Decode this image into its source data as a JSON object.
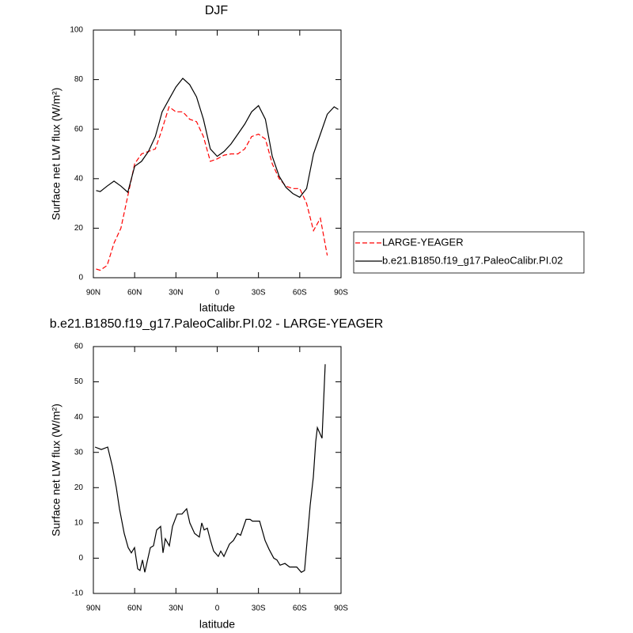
{
  "chart_data": [
    {
      "type": "line",
      "title": "DJF",
      "xlabel": "latitude",
      "ylabel": "Surface net LW flux (W/m²)",
      "x": [
        88,
        85,
        80,
        75,
        70,
        65,
        60,
        55,
        50,
        45,
        40,
        35,
        30,
        25,
        20,
        15,
        10,
        5,
        0,
        -5,
        -10,
        -15,
        -20,
        -25,
        -30,
        -35,
        -40,
        -45,
        -50,
        -55,
        -60,
        -65,
        -70,
        -75,
        -80,
        -85,
        -88
      ],
      "series": [
        {
          "name": "LARGE-YEAGER",
          "color": "#ff0000",
          "style": "dashed",
          "values": [
            3.5,
            3,
            5,
            14,
            20,
            33,
            46,
            50,
            51,
            52,
            60,
            69,
            67,
            67,
            64,
            63,
            57,
            47,
            48,
            49.5,
            50,
            50,
            52,
            57,
            58,
            56,
            46,
            40,
            37,
            36,
            36,
            30,
            19,
            24,
            9,
            null,
            null
          ]
        },
        {
          "name": "b.e21.B1850.f19_g17.PaleoCalibr.PI.02",
          "color": "#000000",
          "style": "solid",
          "values": [
            35.2,
            34.8,
            37,
            39,
            37,
            34.5,
            45,
            47,
            51,
            57,
            67,
            72,
            77,
            80.5,
            78,
            73,
            64,
            52,
            49,
            51,
            54,
            58,
            62,
            67,
            69.5,
            64,
            49,
            41,
            36.5,
            34,
            32.5,
            36,
            50,
            58,
            66,
            69,
            68
          ]
        }
      ],
      "xlim": [
        90,
        -90
      ],
      "xticks": [
        {
          "value": 90,
          "label": "90N"
        },
        {
          "value": 60,
          "label": "60N"
        },
        {
          "value": 30,
          "label": "30N"
        },
        0,
        {
          "value": -30,
          "label": "30S"
        },
        {
          "value": -60,
          "label": "60S"
        },
        {
          "value": -90,
          "label": "90S"
        }
      ],
      "ylim": [
        0,
        100
      ],
      "yticks": [
        0,
        20,
        40,
        60,
        80,
        100
      ],
      "legend": "right"
    },
    {
      "type": "line",
      "title": "b.e21.B1850.f19_g17.PaleoCalibr.PI.02 - LARGE-YEAGER",
      "xlabel": "latitude",
      "ylabel": "Surface net LW flux (W/m²)",
      "color": "#000000",
      "x": [
        88.8,
        84.2,
        79.6,
        76.2,
        73.3,
        71.0,
        67.6,
        64.7,
        62.4,
        60.1,
        57.8,
        56.1,
        54.3,
        52.6,
        50.3,
        48.6,
        46.3,
        44.0,
        41.1,
        39.4,
        37.7,
        34.8,
        32.5,
        29.1,
        25.6,
        22.2,
        19.9,
        16.4,
        13.0,
        11.2,
        9.5,
        7.2,
        4.9,
        2.6,
        -0.8,
        -2.6,
        -4.9,
        -8.9,
        -11.8,
        -14.7,
        -17.0,
        -21.0,
        -23.9,
        -25.6,
        -30.8,
        -34.8,
        -37.7,
        -41.1,
        -43.4,
        -45.7,
        -49.2,
        -52.6,
        -57.8,
        -61.2,
        -63.5,
        -67.6,
        -69.9,
        -71.6,
        -72.8,
        -76.2,
        -78.5
      ],
      "values": [
        31.5,
        30.8,
        31.5,
        26,
        20,
        14,
        7,
        3,
        1.5,
        3,
        -3,
        -3.5,
        -0.5,
        -4,
        0,
        3,
        3.5,
        8,
        9,
        1.5,
        5.5,
        3.5,
        9,
        12.5,
        12.5,
        14,
        10,
        7,
        6,
        10,
        8,
        8.5,
        5,
        2,
        0.5,
        2,
        0.5,
        4,
        5,
        7,
        6.5,
        11,
        11,
        10.5,
        10.5,
        5,
        2.5,
        0,
        -0.5,
        -2,
        -1.5,
        -2.5,
        -2.5,
        -4,
        -3.5,
        15,
        23,
        33,
        37,
        34,
        55
      ],
      "xlim": [
        90,
        -90
      ],
      "xticks": [
        {
          "value": 90,
          "label": "90N"
        },
        {
          "value": 60,
          "label": "60N"
        },
        {
          "value": 30,
          "label": "30N"
        },
        0,
        {
          "value": -30,
          "label": "30S"
        },
        {
          "value": -60,
          "label": "60S"
        },
        {
          "value": -90,
          "label": "90S"
        }
      ],
      "ylim": [
        -10,
        60
      ],
      "yticks": [
        -10,
        0,
        10,
        20,
        30,
        40,
        50,
        60
      ]
    }
  ]
}
